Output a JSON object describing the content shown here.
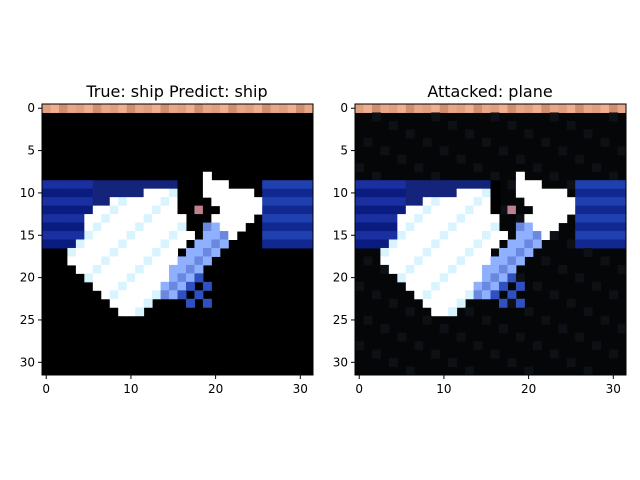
{
  "panels": [
    {
      "title": "True: ship  Predict: ship",
      "image": "adversarial-ship-original",
      "x_ticks": [
        "0",
        "10",
        "20",
        "30"
      ],
      "y_ticks": [
        "0",
        "5",
        "10",
        "15",
        "20",
        "25",
        "30"
      ]
    },
    {
      "title": "Attacked: plane",
      "image": "adversarial-ship-attacked",
      "x_ticks": [
        "0",
        "10",
        "20",
        "30"
      ],
      "y_ticks": [
        "0",
        "5",
        "10",
        "15",
        "20",
        "25",
        "30"
      ]
    }
  ],
  "colors": {
    "background": "#000000",
    "white": "#ffffff",
    "blue": "#1a2fa0",
    "light_blue": "#8fb0ff",
    "top_strip": "#e0a080"
  }
}
